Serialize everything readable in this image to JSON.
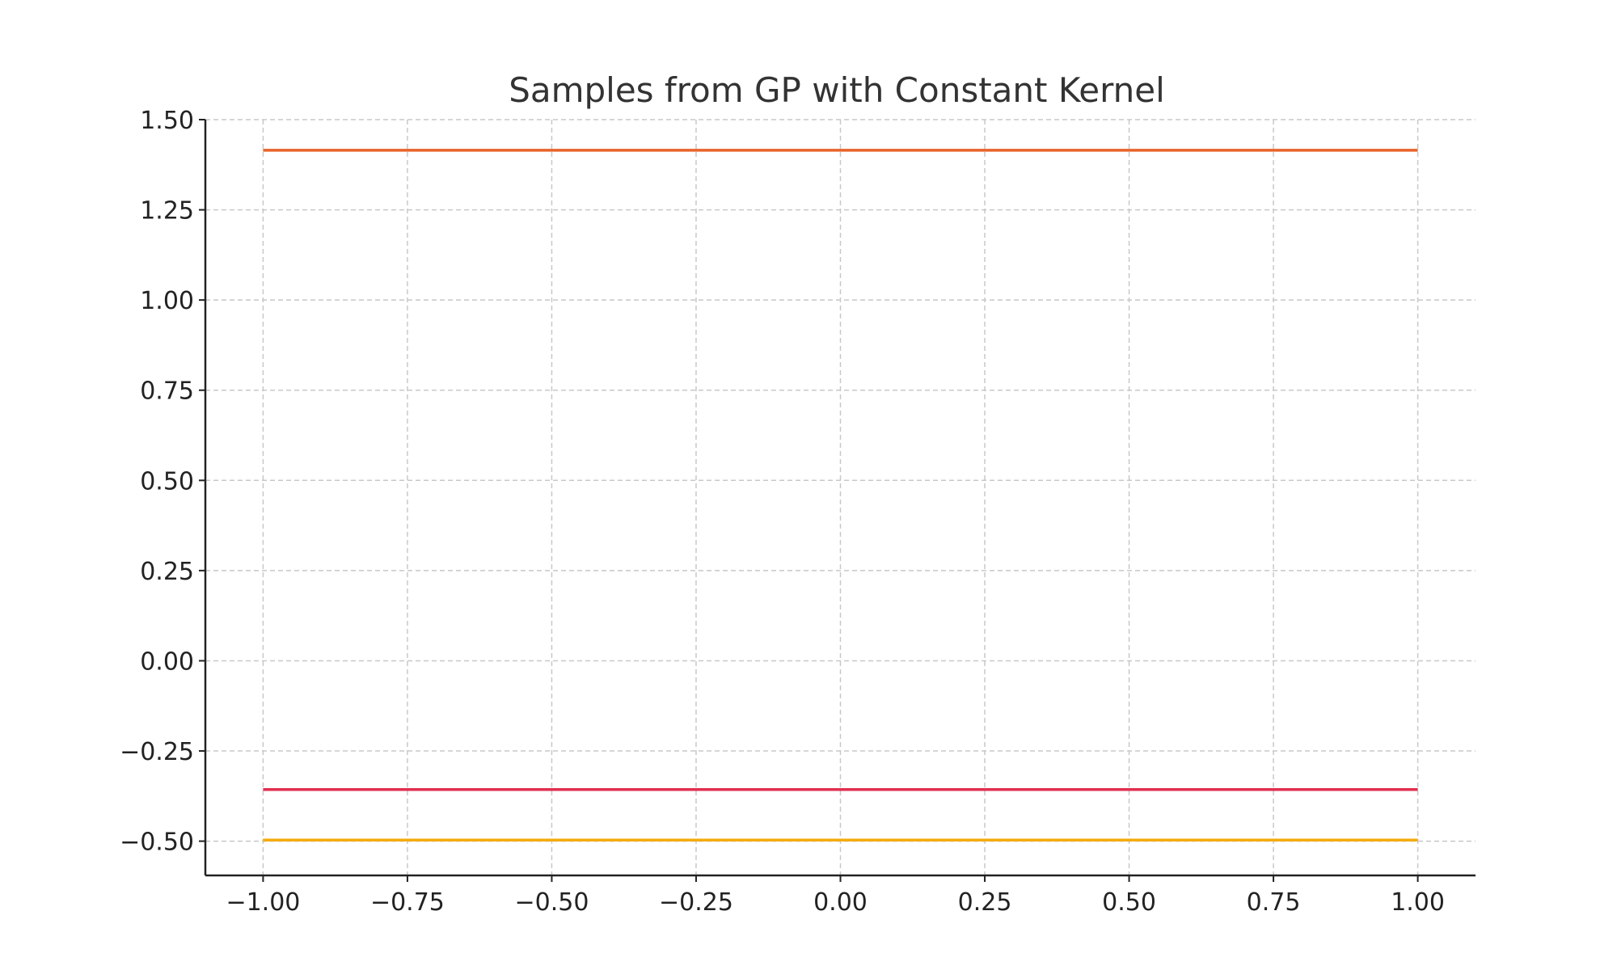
{
  "chart_data": {
    "type": "line",
    "title": "Samples from GP with Constant Kernel",
    "xlabel": "",
    "ylabel": "",
    "xlim": [
      -1.1,
      1.1
    ],
    "ylim": [
      -0.595,
      1.5
    ],
    "x_ticks": [
      -1.0,
      -0.75,
      -0.5,
      -0.25,
      0.0,
      0.25,
      0.5,
      0.75,
      1.0
    ],
    "x_tick_labels": [
      "−1.00",
      "−0.75",
      "−0.50",
      "−0.25",
      "0.00",
      "0.25",
      "0.50",
      "0.75",
      "1.00"
    ],
    "y_ticks": [
      -0.5,
      -0.25,
      0.0,
      0.25,
      0.5,
      0.75,
      1.0,
      1.25,
      1.5
    ],
    "y_tick_labels": [
      "−0.50",
      "−0.25",
      "0.00",
      "0.25",
      "0.50",
      "0.75",
      "1.00",
      "1.25",
      "1.50"
    ],
    "grid": true,
    "series": [
      {
        "x": [
          -1.0,
          1.0
        ],
        "values": [
          1.415,
          1.415
        ],
        "color": "#e8632a"
      },
      {
        "x": [
          -1.0,
          1.0
        ],
        "values": [
          -0.357,
          -0.357
        ],
        "color": "#e0304f"
      },
      {
        "x": [
          -1.0,
          1.0
        ],
        "values": [
          -0.497,
          -0.497
        ],
        "color": "#f5ab0a"
      }
    ]
  }
}
